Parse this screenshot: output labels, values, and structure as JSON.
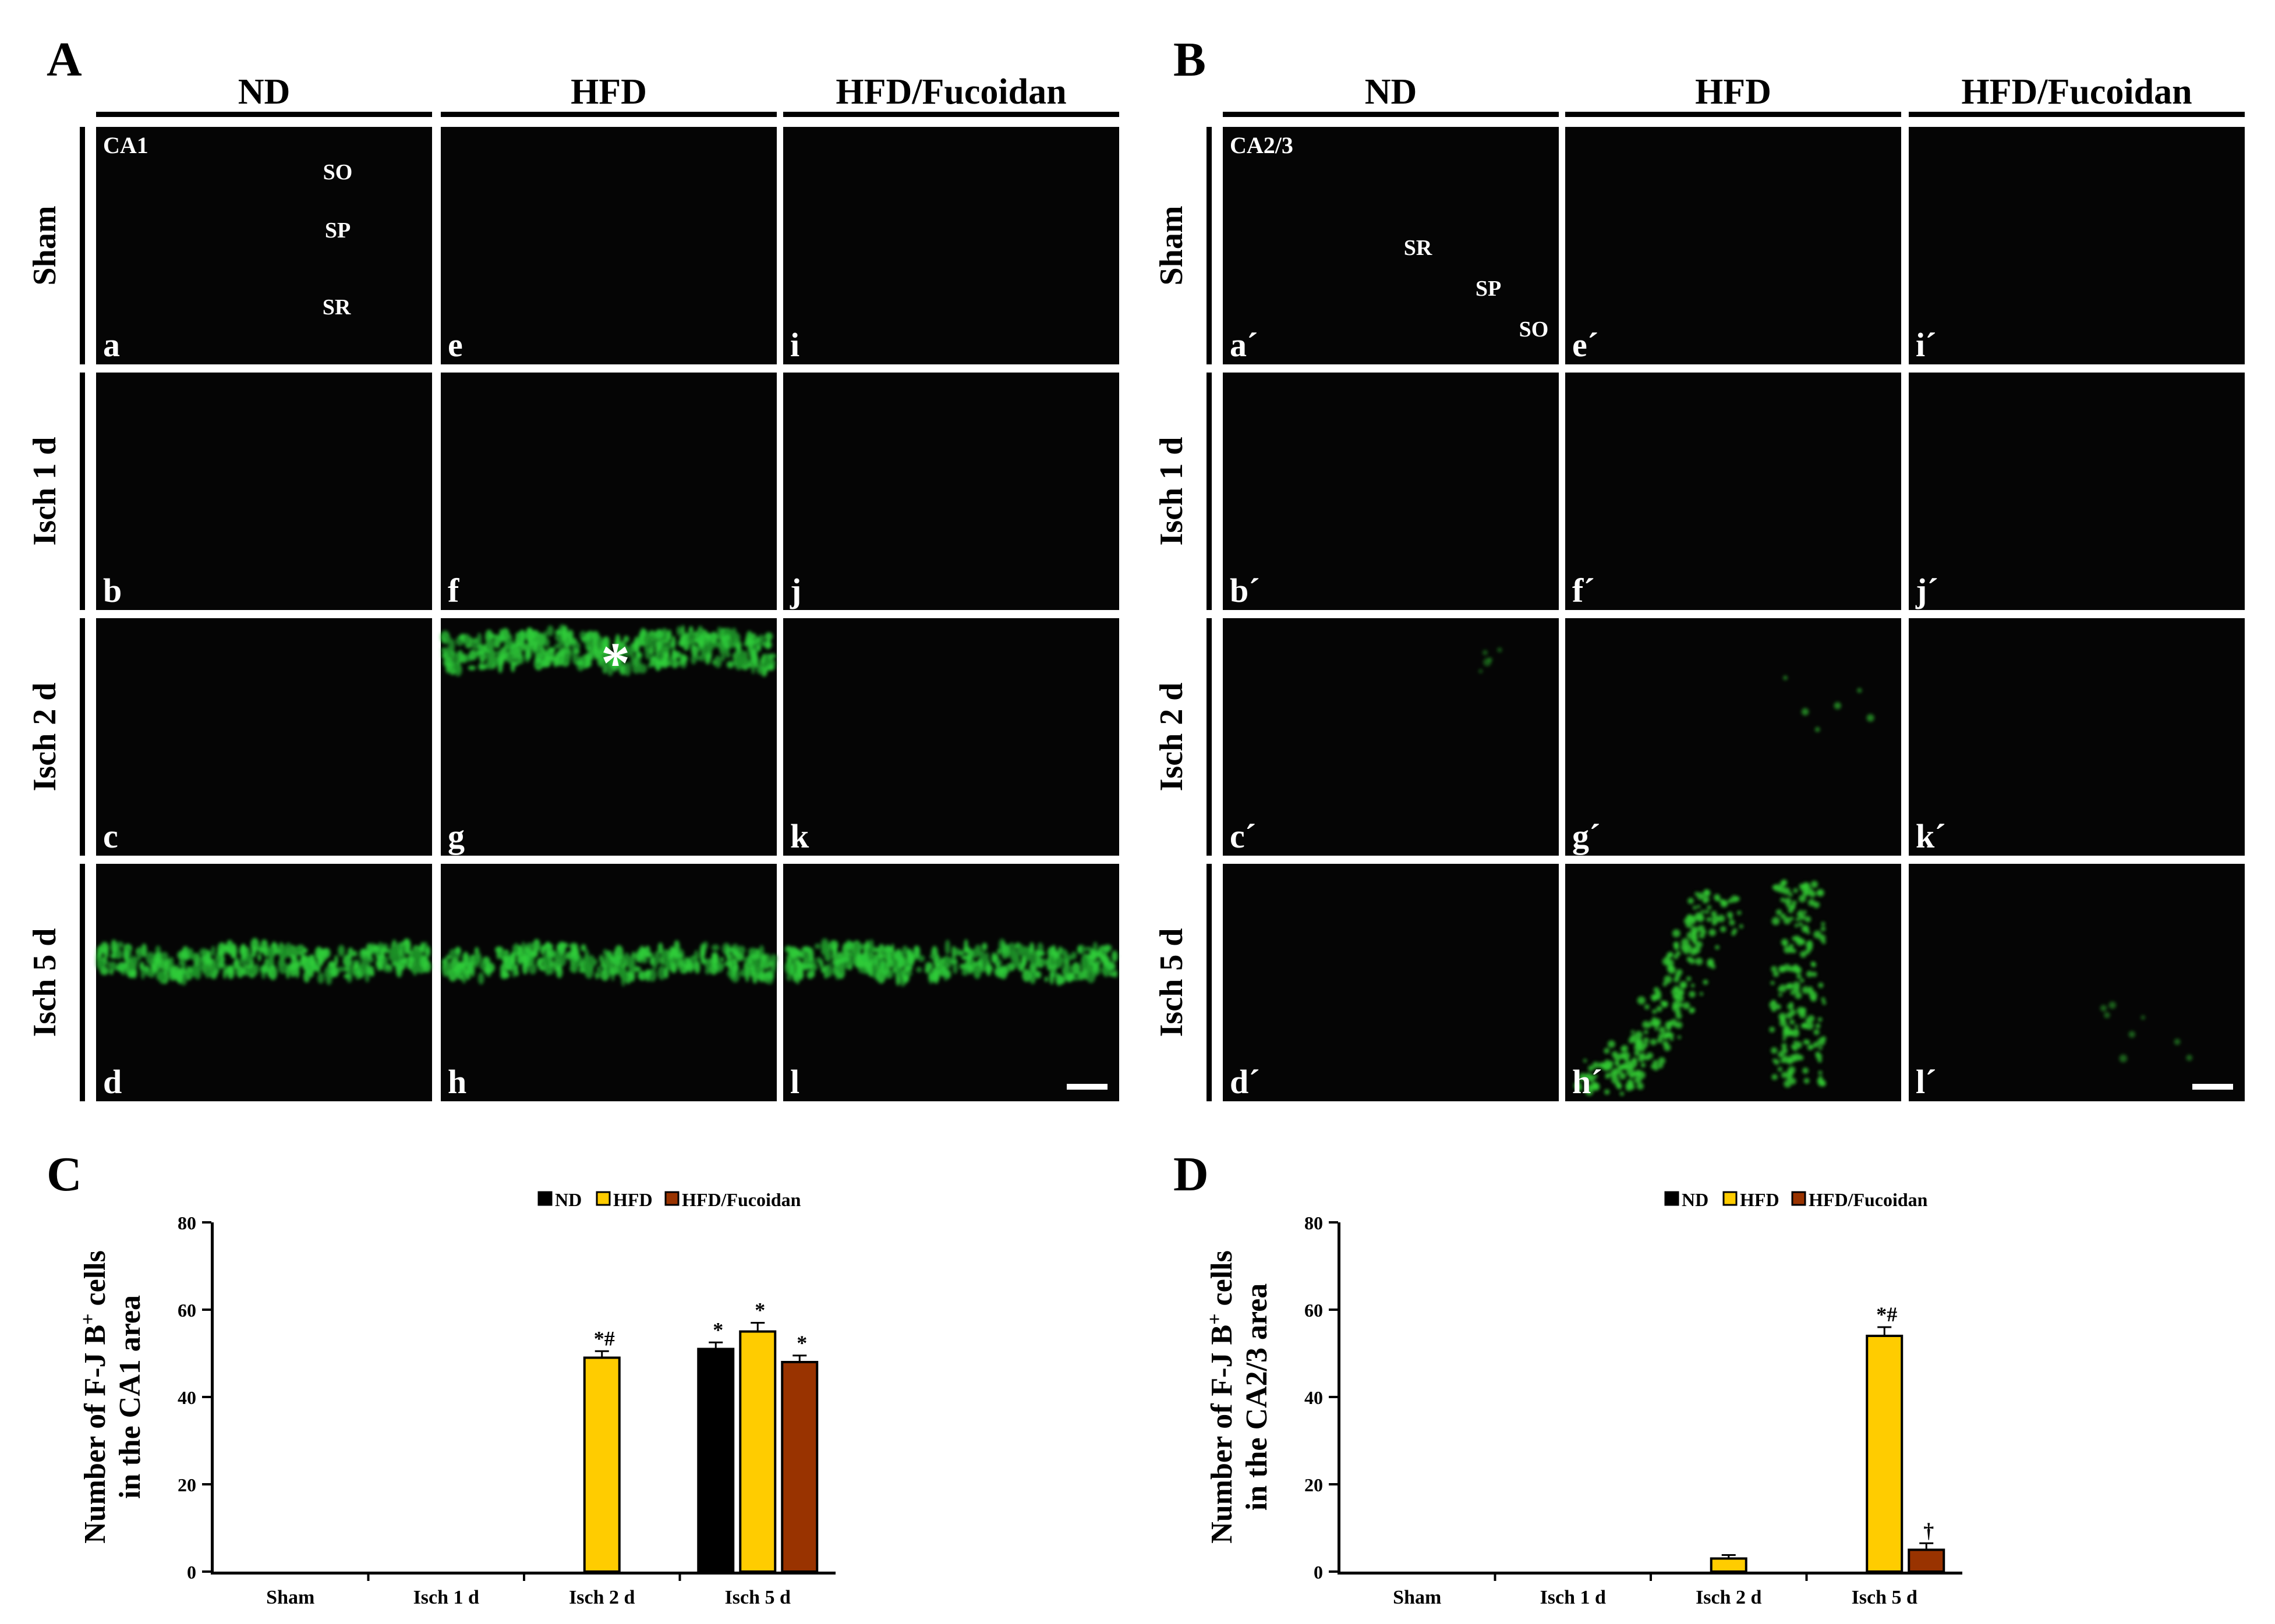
{
  "panel_A": {
    "letter": "A",
    "columns": [
      "ND",
      "HFD",
      "HFD/Fucoidan"
    ],
    "rows": [
      "Sham",
      "Isch 1 d",
      "Isch 2 d",
      "Isch 5 d"
    ],
    "region": "CA1",
    "layers": [
      "SO",
      "SP",
      "SR"
    ],
    "labels": [
      [
        "a",
        "e",
        "i"
      ],
      [
        "b",
        "f",
        "j"
      ],
      [
        "c",
        "g",
        "k"
      ],
      [
        "d",
        "h",
        "l"
      ]
    ],
    "marker": "*"
  },
  "panel_B": {
    "letter": "B",
    "columns": [
      "ND",
      "HFD",
      "HFD/Fucoidan"
    ],
    "rows": [
      "Sham",
      "Isch 1 d",
      "Isch 2 d",
      "Isch 5 d"
    ],
    "region": "CA2/3",
    "layers": [
      "SR",
      "SP",
      "SO"
    ],
    "labels": [
      [
        "a´",
        "e´",
        "i´"
      ],
      [
        "b´",
        "f´",
        "j´"
      ],
      [
        "c´",
        "g´",
        "k´"
      ],
      [
        "d´",
        "h´",
        "l´"
      ]
    ]
  },
  "chart_data": [
    {
      "letter": "C",
      "type": "bar",
      "categories": [
        "Sham",
        "Isch 1 d",
        "Isch 2 d",
        "Isch 5 d"
      ],
      "series": [
        {
          "name": "ND",
          "color": "#000000",
          "values": [
            0,
            0,
            0,
            51
          ],
          "errors": [
            0,
            0,
            0,
            1.5
          ],
          "annot": [
            "",
            "",
            "",
            "*"
          ]
        },
        {
          "name": "HFD",
          "color": "#FFCC00",
          "values": [
            0,
            0,
            49,
            55
          ],
          "errors": [
            0,
            0,
            1.5,
            2
          ],
          "annot": [
            "",
            "",
            "*#",
            "*"
          ]
        },
        {
          "name": "HFD/Fucoidan",
          "color": "#993300",
          "values": [
            0,
            0,
            0,
            48
          ],
          "errors": [
            0,
            0,
            0,
            1.5
          ],
          "annot": [
            "",
            "",
            "",
            "*"
          ]
        }
      ],
      "ylabel_line1": "Number of F-J B",
      "ylabel_sup": "+",
      "ylabel_tail": " cells",
      "ylabel_line2": "in the CA1 area",
      "ylim": [
        0,
        80
      ],
      "yticks": [
        "0",
        "20",
        "40",
        "60",
        "80"
      ],
      "legend_position": "top"
    },
    {
      "letter": "D",
      "type": "bar",
      "categories": [
        "Sham",
        "Isch 1 d",
        "Isch 2 d",
        "Isch 5 d"
      ],
      "series": [
        {
          "name": "ND",
          "color": "#000000",
          "values": [
            0,
            0,
            0,
            0
          ],
          "errors": [
            0,
            0,
            0,
            0
          ],
          "annot": [
            "",
            "",
            "",
            ""
          ]
        },
        {
          "name": "HFD",
          "color": "#FFCC00",
          "values": [
            0,
            0,
            3,
            54
          ],
          "errors": [
            0,
            0,
            0.8,
            2
          ],
          "annot": [
            "",
            "",
            "",
            "*#"
          ]
        },
        {
          "name": "HFD/Fucoidan",
          "color": "#993300",
          "values": [
            0,
            0,
            0,
            5
          ],
          "errors": [
            0,
            0,
            0,
            1.5
          ],
          "annot": [
            "",
            "",
            "",
            "†"
          ]
        }
      ],
      "ylabel_line1": "Number of F-J B",
      "ylabel_sup": "+",
      "ylabel_tail": " cells",
      "ylabel_line2": "in the CA2/3 area",
      "ylim": [
        0,
        80
      ],
      "yticks": [
        "0",
        "20",
        "40",
        "60",
        "80"
      ],
      "legend_position": "top"
    }
  ]
}
